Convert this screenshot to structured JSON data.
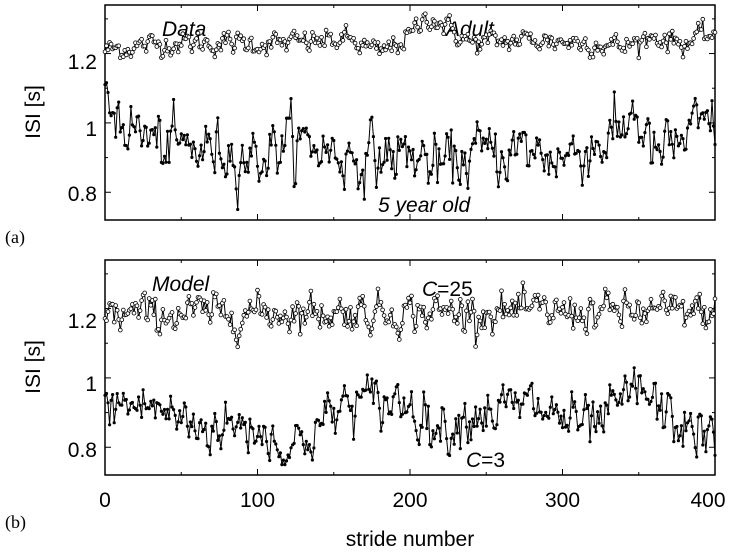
{
  "chart_data": [
    {
      "type": "line",
      "panel": "(a)",
      "ylabel": "ISI [s]",
      "xlim": [
        0,
        400
      ],
      "ylim": [
        0.72,
        1.34
      ],
      "yticks": [
        0.8,
        1,
        1.2
      ],
      "ytick_labels": [
        "0.8",
        "1",
        "1.2"
      ],
      "xticks": [
        0,
        100,
        200,
        300,
        400
      ],
      "annotations": [
        {
          "text": "Data",
          "italic": true
        },
        {
          "text": "Adult",
          "italic": true
        },
        {
          "text": "5 year old",
          "italic": true
        }
      ],
      "series": [
        {
          "name": "Adult",
          "marker": "open-circle",
          "n": 401,
          "key_points": [
            [
              0,
              1.21
            ],
            [
              40,
              1.23
            ],
            [
              80,
              1.23
            ],
            [
              120,
              1.23
            ],
            [
              160,
              1.24
            ],
            [
              180,
              1.2
            ],
            [
              200,
              1.25
            ],
            [
              212,
              1.31
            ],
            [
              240,
              1.23
            ],
            [
              280,
              1.24
            ],
            [
              320,
              1.23
            ],
            [
              340,
              1.22
            ],
            [
              360,
              1.25
            ],
            [
              380,
              1.23
            ],
            [
              400,
              1.26
            ]
          ],
          "mean": 1.235,
          "noise": 0.015
        },
        {
          "name": "5 year old",
          "marker": "filled-dot",
          "n": 401,
          "key_points": [
            [
              0,
              1.02
            ],
            [
              5,
              1.05
            ],
            [
              15,
              0.99
            ],
            [
              40,
              0.93
            ],
            [
              80,
              0.92
            ],
            [
              100,
              0.9
            ],
            [
              120,
              0.95
            ],
            [
              140,
              0.93
            ],
            [
              160,
              0.9
            ],
            [
              200,
              0.91
            ],
            [
              220,
              0.87
            ],
            [
              240,
              0.91
            ],
            [
              280,
              0.92
            ],
            [
              300,
              0.9
            ],
            [
              340,
              0.97
            ],
            [
              345,
              1.05
            ],
            [
              360,
              0.9
            ],
            [
              390,
              0.98
            ],
            [
              400,
              1.0
            ]
          ],
          "mean": 0.93,
          "noise": 0.04
        }
      ]
    },
    {
      "type": "line",
      "panel": "(b)",
      "ylabel": "ISI [s]",
      "xlabel": "stride number",
      "xlim": [
        0,
        400
      ],
      "ylim": [
        0.72,
        1.34
      ],
      "yticks": [
        0.8,
        1,
        1.2
      ],
      "ytick_labels": [
        "0.8",
        "1",
        "1.2"
      ],
      "xticks": [
        0,
        100,
        200,
        300,
        400
      ],
      "xtick_labels": [
        "0",
        "100",
        "200",
        "300",
        "400"
      ],
      "annotations": [
        {
          "text": "Model",
          "italic": true
        },
        {
          "text": "C=25",
          "italic": false
        },
        {
          "text": "C=3",
          "italic": false
        }
      ],
      "series": [
        {
          "name": "C=25",
          "marker": "open-circle",
          "n": 401,
          "key_points": [
            [
              0,
              1.18
            ],
            [
              100,
              1.19
            ],
            [
              200,
              1.19
            ],
            [
              300,
              1.19
            ],
            [
              400,
              1.19
            ]
          ],
          "mean": 1.19,
          "noise": 0.025
        },
        {
          "name": "C=3",
          "marker": "filled-dot",
          "n": 401,
          "key_points": [
            [
              0,
              0.92
            ],
            [
              30,
              0.92
            ],
            [
              60,
              0.86
            ],
            [
              100,
              0.86
            ],
            [
              120,
              0.79
            ],
            [
              140,
              0.86
            ],
            [
              160,
              0.93
            ],
            [
              200,
              0.93
            ],
            [
              220,
              0.85
            ],
            [
              240,
              0.9
            ],
            [
              280,
              0.92
            ],
            [
              320,
              0.85
            ],
            [
              350,
              0.97
            ],
            [
              370,
              0.88
            ],
            [
              400,
              0.82
            ]
          ],
          "mean": 0.9,
          "noise": 0.035
        }
      ]
    }
  ],
  "labels": {
    "ylabel": "ISI [s]",
    "xlabel": "stride number",
    "panel_a": "(a)",
    "panel_b": "(b)",
    "data": "Data",
    "adult": "Adult",
    "five_year_old": "5 year old",
    "model": "Model",
    "c25_var": "C",
    "c25_val": "=25",
    "c3_var": "C",
    "c3_val": "=3",
    "yt_08": "0.8",
    "yt_1": "1",
    "yt_12": "1.2",
    "xt_0": "0",
    "xt_100": "100",
    "xt_200": "200",
    "xt_300": "300",
    "xt_400": "400"
  }
}
